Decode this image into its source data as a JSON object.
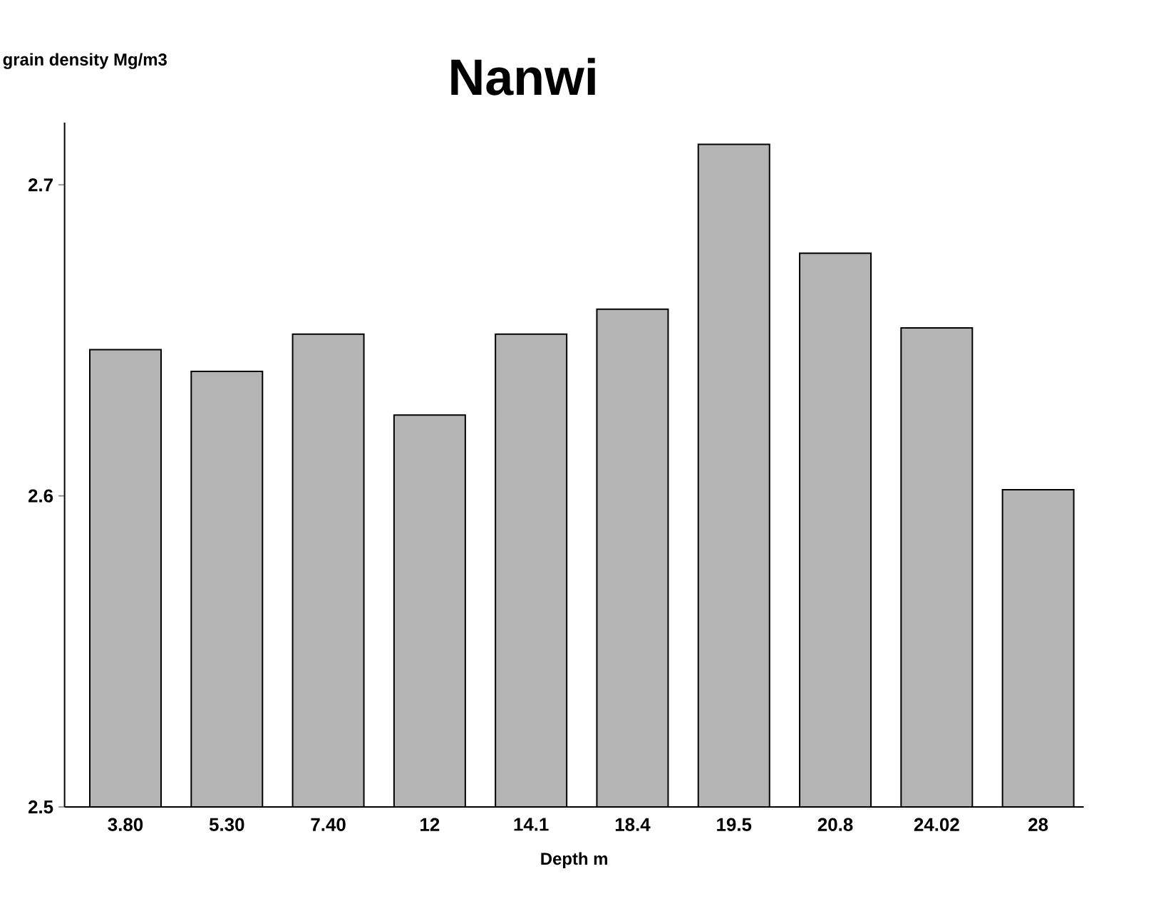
{
  "chart_data": {
    "type": "bar",
    "title": "Nanwi",
    "xlabel": "Depth m",
    "ylabel": "grain density Mg/m3",
    "categories": [
      "3.80",
      "5.30",
      "7.40",
      "12",
      "14.1",
      "18.4",
      "19.5",
      "20.8",
      "24.02",
      "28"
    ],
    "values": [
      2.647,
      2.64,
      2.652,
      2.626,
      2.652,
      2.66,
      2.713,
      2.678,
      2.654,
      2.602
    ],
    "color": "#b4b4b4",
    "ylim": [
      2.5,
      2.72
    ],
    "yticks": [
      2.5,
      2.6,
      2.7
    ],
    "grid": false
  }
}
